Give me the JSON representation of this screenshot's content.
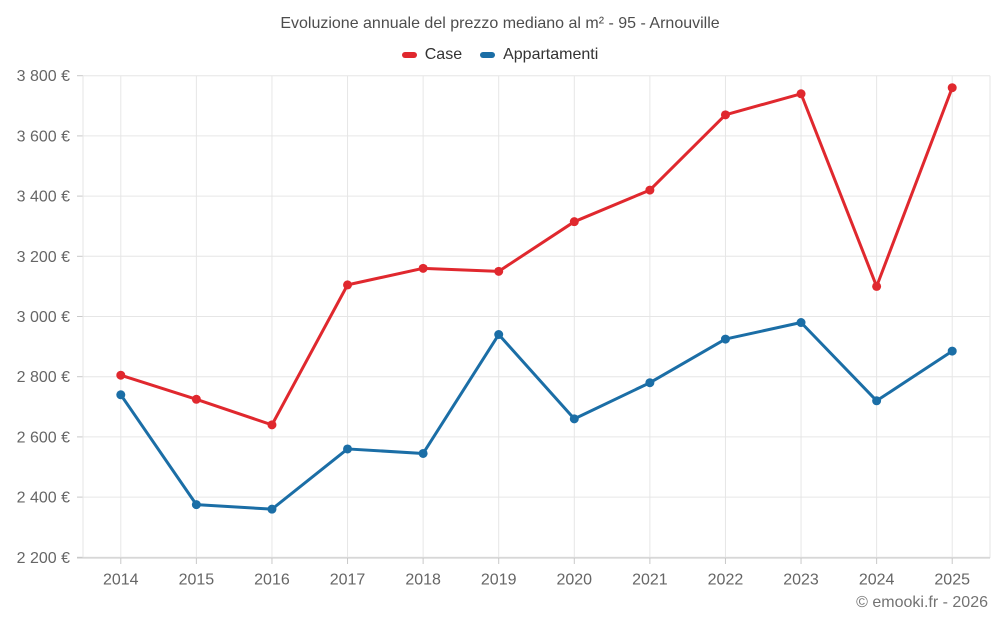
{
  "chart": {
    "title": "Evoluzione annuale del prezzo mediano al m² - 95 - Arnouville",
    "credit": "© emooki.fr - 2026"
  },
  "chart_data": {
    "type": "line",
    "title": "Evoluzione annuale del prezzo mediano al m² - 95 - Arnouville",
    "categories": [
      "2014",
      "2015",
      "2016",
      "2017",
      "2018",
      "2019",
      "2020",
      "2021",
      "2022",
      "2023",
      "2024",
      "2025"
    ],
    "series": [
      {
        "name": "Case",
        "color": "#e0282e",
        "values": [
          2805,
          2725,
          2640,
          3105,
          3160,
          3150,
          3315,
          3420,
          3670,
          3740,
          3100,
          3760
        ]
      },
      {
        "name": "Appartamenti",
        "color": "#1b6ea6",
        "values": [
          2740,
          2375,
          2360,
          2560,
          2545,
          2940,
          2660,
          2780,
          2925,
          2980,
          2720,
          2885
        ]
      }
    ],
    "xlabel": "",
    "ylabel": "",
    "ylim": [
      2200,
      3800
    ],
    "yticks": [
      2200,
      2400,
      2600,
      2800,
      3000,
      3200,
      3400,
      3600,
      3800
    ],
    "ytick_labels": [
      "2 200 €",
      "2 400 €",
      "2 600 €",
      "2 800 €",
      "3 000 €",
      "3 200 €",
      "3 400 €",
      "3 600 €",
      "3 800 €"
    ],
    "grid": true,
    "legend_position": "top",
    "credit": "© emooki.fr - 2026",
    "colors": {
      "gridline": "#e6e6e6",
      "axis": "#c8c8c8",
      "tick_label": "#666666",
      "title": "#4d4d4d",
      "legend_text": "#333333",
      "credit_text": "#737373"
    }
  }
}
